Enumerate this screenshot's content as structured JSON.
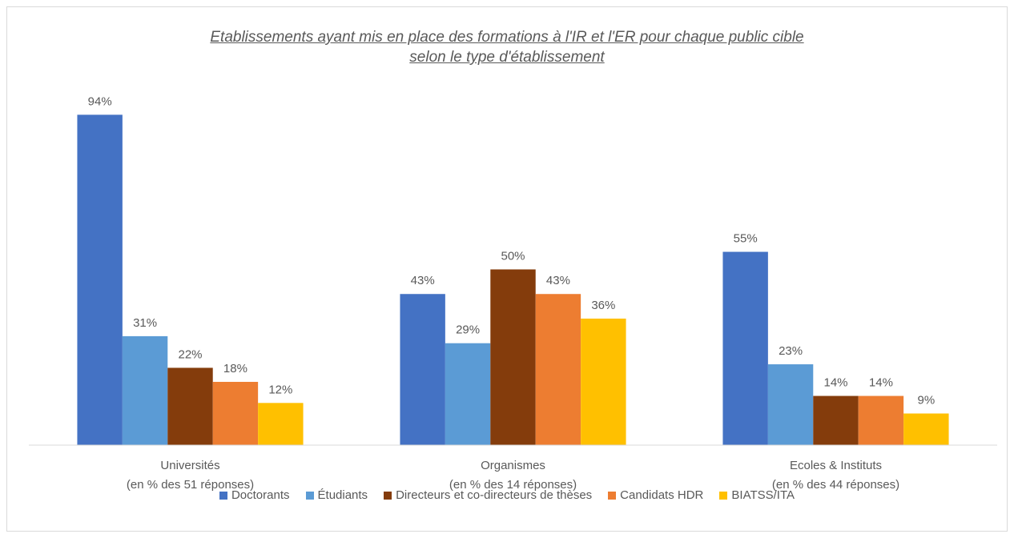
{
  "chart_data": {
    "type": "bar",
    "title": "Etablissements ayant mis en place des formations à l'IR et l'ER pour chaque public cible\nselon le type d'établissement",
    "categories": [
      "Universités\n(en % des 51 réponses)",
      "Organismes\n(en % des 14 réponses)",
      "Ecoles & Instituts\n(en % des 44 réponses)"
    ],
    "series": [
      {
        "name": "Doctorants",
        "color": "#4472c4",
        "values": [
          94,
          43,
          55
        ],
        "value_labels": [
          "94%",
          "43%",
          "55%"
        ]
      },
      {
        "name": "Étudiants",
        "color": "#5b9bd5",
        "values": [
          31,
          29,
          23
        ],
        "value_labels": [
          "31%",
          "29%",
          "23%"
        ]
      },
      {
        "name": "Directeurs et co-directeurs de thèses",
        "color": "#843c0c",
        "values": [
          22,
          50,
          14
        ],
        "value_labels": [
          "22%",
          "50%",
          "14%"
        ]
      },
      {
        "name": "Candidats HDR",
        "color": "#ed7d31",
        "values": [
          18,
          43,
          14
        ],
        "value_labels": [
          "18%",
          "43%",
          "14%"
        ]
      },
      {
        "name": "BIATSS/ITA",
        "color": "#ffc000",
        "values": [
          12,
          36,
          9
        ],
        "value_labels": [
          "12%",
          "36%",
          "9%"
        ]
      }
    ],
    "ylim": [
      0,
      100
    ],
    "legend": "bottom"
  }
}
